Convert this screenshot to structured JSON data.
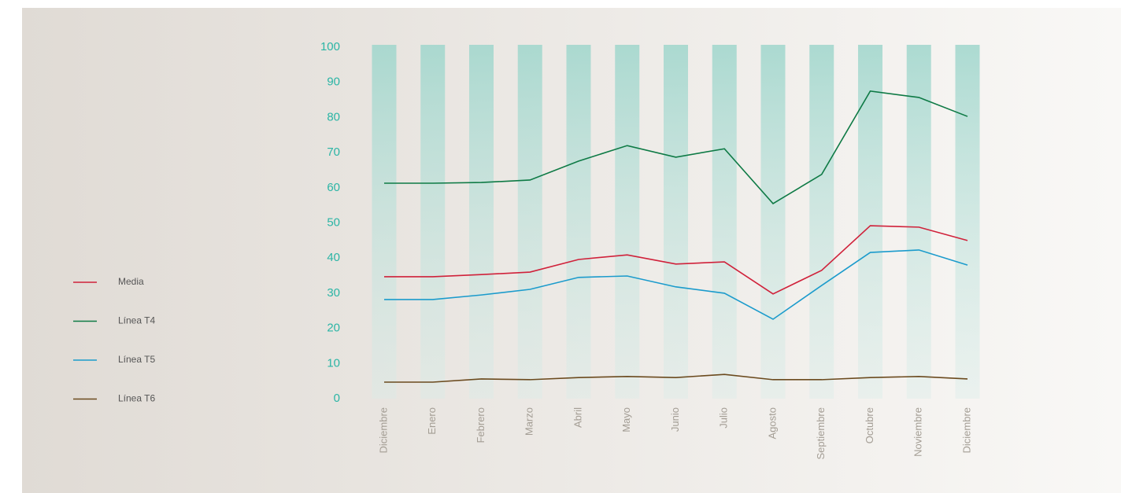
{
  "chart_data": {
    "type": "line",
    "categories": [
      "Diciembre",
      "Enero",
      "Febrero",
      "Marzo",
      "Abril",
      "Mayo",
      "Junio",
      "Julio",
      "Agosto",
      "Septiembre",
      "Octubre",
      "Noviembre",
      "Diciembre"
    ],
    "series": [
      {
        "name": "Media",
        "color": "#d0213a",
        "values": [
          34.7,
          34.7,
          35.3,
          36,
          39.6,
          40.9,
          38.3,
          38.9,
          29.8,
          36.5,
          49.2,
          48.8,
          45
        ]
      },
      {
        "name": "Línea T4",
        "color": "#0e7a45",
        "values": [
          61.3,
          61.3,
          61.5,
          62.2,
          67.6,
          72,
          68.7,
          71.1,
          55.5,
          63.8,
          87.5,
          85.7,
          80.3
        ]
      },
      {
        "name": "Línea T5",
        "color": "#1b9bcc",
        "values": [
          28.2,
          28.2,
          29.5,
          31.1,
          34.5,
          34.9,
          31.8,
          30,
          22.6,
          32.2,
          41.6,
          42.3,
          38
        ]
      },
      {
        "name": "Línea T6",
        "color": "#6b4a1e",
        "values": [
          4.7,
          4.7,
          5.6,
          5.4,
          6,
          6.3,
          6,
          6.9,
          5.4,
          5.4,
          6,
          6.3,
          5.6
        ]
      }
    ],
    "ylim": [
      0,
      100
    ],
    "yticks": [
      0,
      10,
      20,
      30,
      40,
      50,
      60,
      70,
      80,
      90,
      100
    ],
    "legend": "left"
  }
}
